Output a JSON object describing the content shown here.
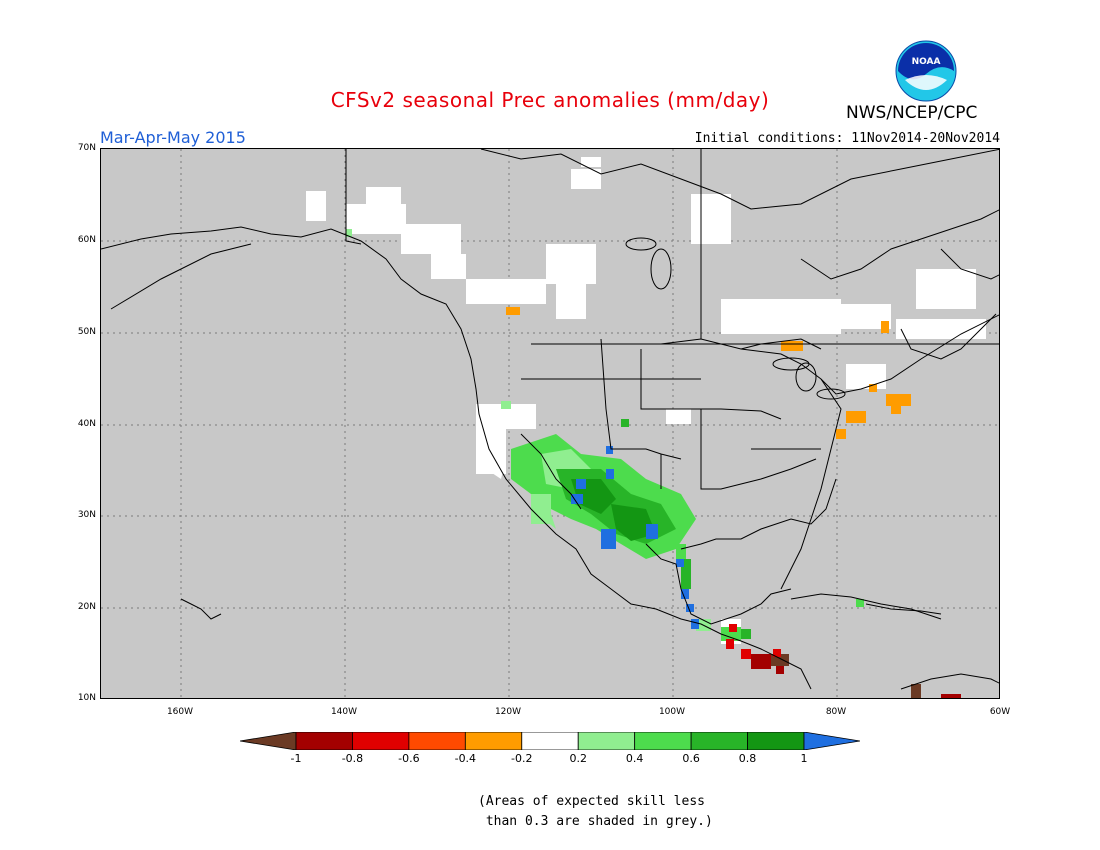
{
  "title": "CFSv2 seasonal Prec anomalies (mm/day)",
  "season": "Mar-Apr-May 2015",
  "initial_conditions": "Initial conditions: 11Nov2014-20Nov2014",
  "agency": "NWS/NCEP/CPC",
  "logo_text": "NOAA",
  "lat_ticks": [
    "70N",
    "60N",
    "50N",
    "40N",
    "30N",
    "20N",
    "10N"
  ],
  "lon_ticks": [
    "160W",
    "140W",
    "120W",
    "100W",
    "80W",
    "60W"
  ],
  "colorbar": {
    "labels": [
      "-1",
      "-0.8",
      "-0.6",
      "-0.4",
      "-0.2",
      "0.2",
      "0.4",
      "0.6",
      "0.8",
      "1"
    ],
    "colors": [
      "#6b3a24",
      "#a30000",
      "#e00000",
      "#ff4a00",
      "#ff9c00",
      "#ffffff",
      "#90ee90",
      "#4ddc4d",
      "#28b428",
      "#139613",
      "#1f6fe0"
    ]
  },
  "note_line1": "(Areas of expected skill less",
  "note_line2": " than 0.3 are shaded in grey.)"
}
